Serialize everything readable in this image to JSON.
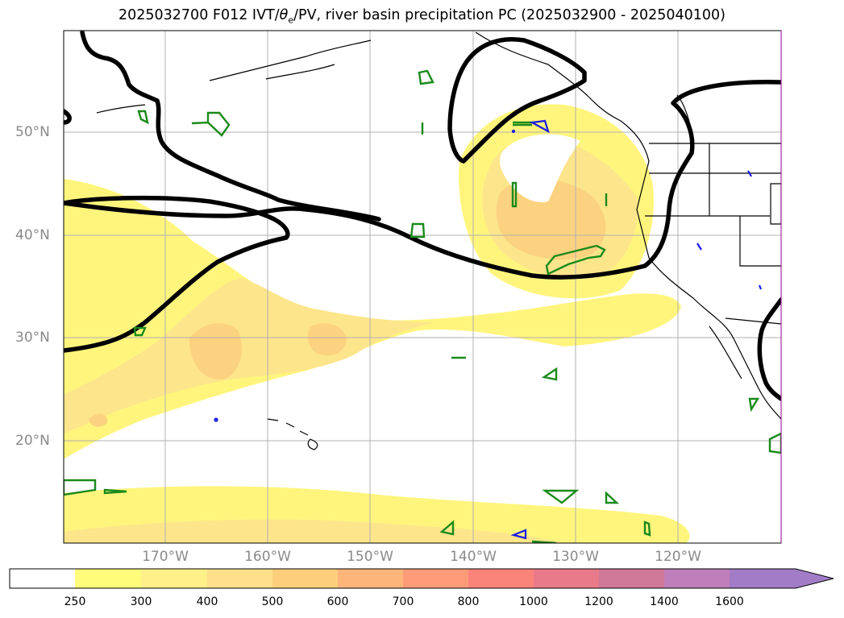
{
  "map": {
    "title_prefix": "2025032700 F012 IVT/",
    "title_theta": "θ",
    "title_sub": "e",
    "title_suffix": "/PV, river basin precipitation PC (2025032900 - 2025040100)",
    "lat_labels": [
      "50°N",
      "40°N",
      "30°N",
      "20°N"
    ],
    "lon_labels": [
      "170°W",
      "160°W",
      "150°W",
      "140°W",
      "130°W",
      "120°W"
    ]
  },
  "colorbar": {
    "ticks": [
      "250",
      "300",
      "400",
      "500",
      "600",
      "700",
      "800",
      "1000",
      "1200",
      "1400",
      "1600"
    ],
    "colors": [
      "#ffffff",
      "#fffd7a",
      "#fff08a",
      "#fee08a",
      "#fdcf7c",
      "#fdb57a",
      "#fd9b78",
      "#fa837a",
      "#e87a8a",
      "#d07898",
      "#bf7fba",
      "#a27cc7"
    ]
  },
  "colors": {
    "ivt_light": "#fff27a",
    "ivt_mid": "#fde38a",
    "ivt_core": "#fbd07e",
    "pv_contour": "#000000",
    "green_contour": "#1a8a1a",
    "blue_contour": "#1a1ae6",
    "grid": "#b0b0b0"
  }
}
